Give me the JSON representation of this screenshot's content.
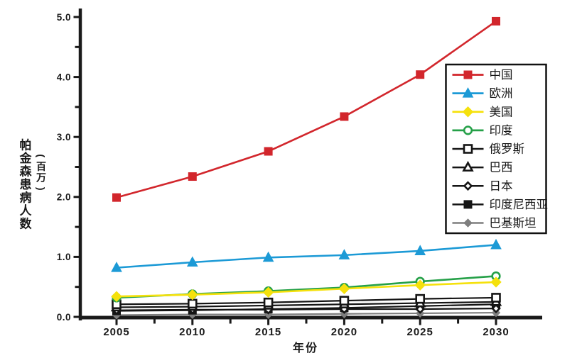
{
  "page": {
    "background": "#ffffff"
  },
  "chart_data": {
    "type": "line",
    "title": "",
    "xlabel": "年份",
    "ylabel": "帕金森患病人数",
    "ylabel_unit": "(百万)",
    "x": [
      2005,
      2010,
      2015,
      2020,
      2025,
      2030
    ],
    "xtick_labels": [
      "2005",
      "2010",
      "2015",
      "2020",
      "2025",
      "2030"
    ],
    "ytick_labels": [
      "0.0",
      "1.0",
      "2.0",
      "3.0",
      "4.0",
      "5.0"
    ],
    "ylim": [
      0,
      5
    ],
    "xlim": [
      2005,
      2030
    ],
    "grid": false,
    "legend_position": "upper-right",
    "axis_color": "#1a1a1a",
    "series": [
      {
        "key": "china",
        "label": "中国",
        "color": "#d2262c",
        "marker": "square",
        "open": false,
        "values": [
          1.99,
          2.34,
          2.76,
          3.34,
          4.04,
          4.93
        ]
      },
      {
        "key": "europe",
        "label": "欧洲",
        "color": "#1c9ad6",
        "marker": "triangle",
        "open": false,
        "values": [
          0.82,
          0.91,
          0.99,
          1.03,
          1.1,
          1.2
        ]
      },
      {
        "key": "usa",
        "label": "美国",
        "color": "#f5e10c",
        "marker": "diamond",
        "open": false,
        "values": [
          0.34,
          0.37,
          0.41,
          0.47,
          0.53,
          0.58
        ]
      },
      {
        "key": "india",
        "label": "印度",
        "color": "#25a048",
        "marker": "circle",
        "open": true,
        "values": [
          0.32,
          0.38,
          0.43,
          0.49,
          0.59,
          0.68
        ]
      },
      {
        "key": "russia",
        "label": "俄罗斯",
        "color": "#151515",
        "marker": "square",
        "open": true,
        "values": [
          0.21,
          0.22,
          0.24,
          0.27,
          0.3,
          0.32
        ]
      },
      {
        "key": "brazil",
        "label": "巴西",
        "color": "#151515",
        "marker": "triangle",
        "open": true,
        "values": [
          0.16,
          0.17,
          0.19,
          0.21,
          0.23,
          0.25
        ]
      },
      {
        "key": "japan",
        "label": "日本",
        "color": "#151515",
        "marker": "diamond",
        "open": true,
        "values": [
          0.11,
          0.12,
          0.12,
          0.13,
          0.13,
          0.14
        ]
      },
      {
        "key": "indonesia",
        "label": "印度尼西亚",
        "color": "#151515",
        "marker": "square",
        "open": false,
        "values": [
          0.1,
          0.11,
          0.13,
          0.15,
          0.18,
          0.21
        ]
      },
      {
        "key": "pakistan",
        "label": "巴基斯坦",
        "color": "#7e7e7e",
        "marker": "diamond",
        "open": false,
        "values": [
          0.03,
          0.04,
          0.04,
          0.05,
          0.06,
          0.07
        ]
      }
    ]
  }
}
